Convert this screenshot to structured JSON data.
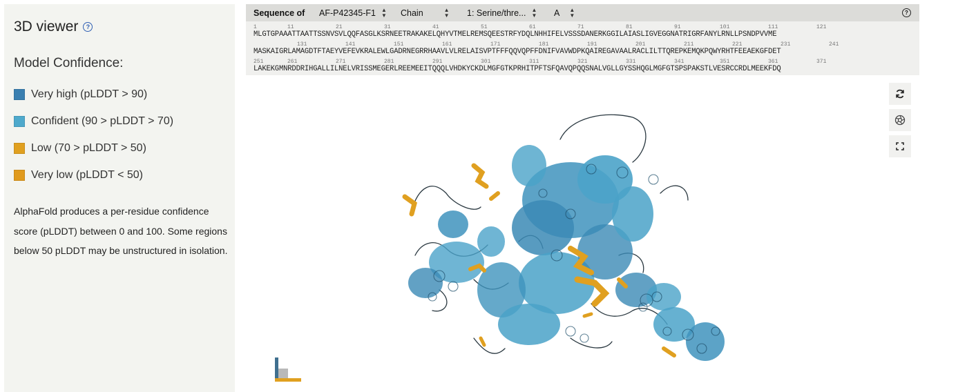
{
  "left_panel": {
    "title": "3D viewer",
    "help_icon": "?",
    "model_confidence_title": "Model Confidence:",
    "legend": [
      {
        "label": "Very high (pLDDT > 90)",
        "color": "#3a7fb0"
      },
      {
        "label": "Confident (90 > pLDDT > 70)",
        "color": "#4ea9cc"
      },
      {
        "label": "Low (70 > pLDDT > 50)",
        "color": "#e0a020"
      },
      {
        "label": "Very low (pLDDT < 50)",
        "color": "#e09a1d"
      }
    ],
    "description": "AlphaFold produces a per-residue confidence score (pLDDT) between 0 and 100. Some regions below 50 pLDDT may be unstructured in isolation."
  },
  "sequence_panel": {
    "label": "Sequence of",
    "selects": [
      {
        "value": "AF-P42345-F1"
      },
      {
        "value": "Chain"
      },
      {
        "value": "1: Serine/thre..."
      },
      {
        "value": "A"
      }
    ],
    "help_icon": "?",
    "rows": [
      {
        "numbers": [
          "1",
          "11",
          "21",
          "31",
          "41",
          "51",
          "61",
          "71",
          "81",
          "91",
          "101",
          "111",
          "121"
        ],
        "sequence": "MLGTGPAAATTAATTSSNVSVLQQFASGLKSRNEETRAKAKELQHYVTMELREMSQEESTRFYDQLNHHIFELVSSSDANERKGGILAIASLIGVEGGNATRIGRFANYLRNLLPSNDPVVME"
      },
      {
        "numbers": [
          "131",
          "141",
          "151",
          "161",
          "171",
          "181",
          "191",
          "201",
          "211",
          "221",
          "231",
          "241"
        ],
        "sequence": "MASKAIGRLAMAGDTFTAEYVEFEVKRALEWLGADRNEGRRHAAVLVLRELAISVPTFFFQQVQPFFDNIFVAVWDPKQAIREGAVAALRACLILTTQREPKEMQKPQWYRHTFEEAEKGFDET"
      },
      {
        "numbers": [
          "251",
          "261",
          "271",
          "281",
          "291",
          "301",
          "311",
          "321",
          "331",
          "341",
          "351",
          "361",
          "371"
        ],
        "sequence": "LAKEKGMNRDDRIHGALLILNELVRISSMEGERLREEMEEITQQQLVHDKYCKDLMGFGTKPRHITPFTSFQAVQPQQSNALVGLLGYSSHQGLMGFGTSPSPAKSTLVESRCCRDLMEEKFDQ"
      }
    ]
  },
  "side_buttons": [
    {
      "icon": "reset-icon"
    },
    {
      "icon": "screenshot-icon"
    },
    {
      "icon": "fullscreen-icon"
    }
  ],
  "colors": {
    "very_high": "#3a7fb0",
    "confident": "#4ea9cc",
    "low": "#e0a020",
    "very_low": "#e09a1d",
    "panel_bg": "#f3f4f0",
    "toolbar_bg": "#dcdcd9"
  }
}
